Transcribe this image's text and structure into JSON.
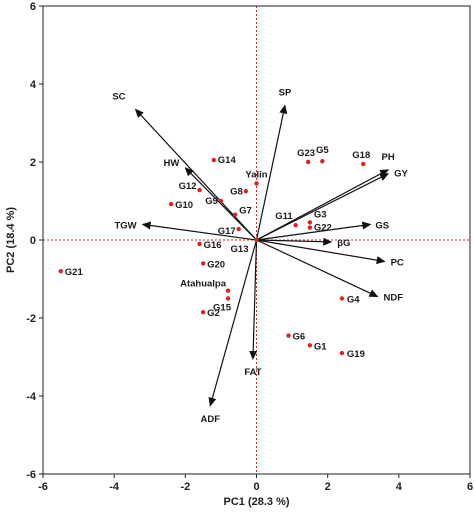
{
  "chart_data": {
    "type": "scatter",
    "subtype": "pca-biplot",
    "xlabel": "PC1 (28.3 %)",
    "ylabel": "PC2 (18.4 %)",
    "xlim": [
      -6,
      6
    ],
    "ylim": [
      -6,
      6
    ],
    "x_ticks": [
      -6,
      -4,
      -2,
      0,
      2,
      4,
      6
    ],
    "y_ticks": [
      -6,
      -4,
      -2,
      0,
      2,
      4,
      6
    ],
    "grid": false,
    "reference_lines": {
      "x": 0,
      "y": 0,
      "style": "dotted",
      "color": "#dd2222"
    },
    "colors": {
      "points": "#dd2222",
      "vectors": "#111111",
      "frame": "#222222"
    },
    "genotypes": [
      {
        "label": "G21",
        "x": -5.5,
        "y": -0.8
      },
      {
        "label": "G14",
        "x": -1.2,
        "y": 2.05
      },
      {
        "label": "G12",
        "x": -1.6,
        "y": 1.28
      },
      {
        "label": "G10",
        "x": -2.4,
        "y": 0.92
      },
      {
        "label": "G9",
        "x": -1.0,
        "y": 1.0
      },
      {
        "label": "G8",
        "x": -0.3,
        "y": 1.25
      },
      {
        "label": "Yalin",
        "x": 0.0,
        "y": 1.45
      },
      {
        "label": "G7",
        "x": -0.6,
        "y": 0.65
      },
      {
        "label": "G17",
        "x": -0.5,
        "y": 0.28
      },
      {
        "label": "G13",
        "x": 0.0,
        "y": 0.0
      },
      {
        "label": "G16",
        "x": -1.6,
        "y": -0.1
      },
      {
        "label": "G20",
        "x": -1.5,
        "y": -0.6
      },
      {
        "label": "Atahualpa",
        "x": -0.8,
        "y": -1.3
      },
      {
        "label": "G15",
        "x": -0.8,
        "y": -1.5
      },
      {
        "label": "G2",
        "x": -1.5,
        "y": -1.85
      },
      {
        "label": "G11",
        "x": 1.1,
        "y": 0.38
      },
      {
        "label": "G3",
        "x": 1.5,
        "y": 0.45
      },
      {
        "label": "G22",
        "x": 1.5,
        "y": 0.32
      },
      {
        "label": "G23",
        "x": 1.45,
        "y": 2.0
      },
      {
        "label": "G5",
        "x": 1.85,
        "y": 2.02
      },
      {
        "label": "G18",
        "x": 3.0,
        "y": 1.95
      },
      {
        "label": "G4",
        "x": 2.4,
        "y": -1.5
      },
      {
        "label": "G6",
        "x": 0.9,
        "y": -2.45
      },
      {
        "label": "G1",
        "x": 1.5,
        "y": -2.7
      },
      {
        "label": "G19",
        "x": 2.4,
        "y": -2.9
      }
    ],
    "traits": [
      {
        "label": "SC",
        "x": -3.4,
        "y": 3.35
      },
      {
        "label": "SP",
        "x": 0.8,
        "y": 3.45
      },
      {
        "label": "HW",
        "x": -2.0,
        "y": 1.85
      },
      {
        "label": "PH",
        "x": 3.7,
        "y": 1.8
      },
      {
        "label": "GY",
        "x": 3.7,
        "y": 1.7
      },
      {
        "label": "TGW",
        "x": -3.2,
        "y": 0.4
      },
      {
        "label": "GS",
        "x": 3.2,
        "y": 0.4
      },
      {
        "label": "βG",
        "x": 2.1,
        "y": -0.05
      },
      {
        "label": "PC",
        "x": 3.6,
        "y": -0.55
      },
      {
        "label": "NDF",
        "x": 3.4,
        "y": -1.45
      },
      {
        "label": "FAT",
        "x": -0.1,
        "y": -3.05
      },
      {
        "label": "ADF",
        "x": -1.3,
        "y": -4.25
      }
    ]
  }
}
